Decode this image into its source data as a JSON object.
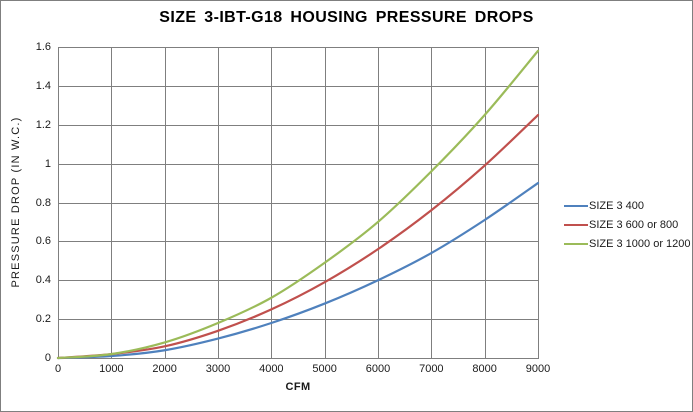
{
  "figure": {
    "title": "SIZE 3-IBT-G18 HOUSING PRESSURE DROPS"
  },
  "chart_data": {
    "type": "line",
    "title": "SIZE 3-IBT-G18 HOUSING PRESSURE DROPS",
    "xlabel": "CFM",
    "ylabel": "PRESSURE DROP (IN W.C.)",
    "xlim": [
      0,
      9000
    ],
    "ylim": [
      0,
      1.6
    ],
    "x_tick_labels": [
      "0",
      "1000",
      "2000",
      "3000",
      "4000",
      "5000",
      "6000",
      "7000",
      "8000",
      "9000"
    ],
    "y_tick_labels": [
      "0",
      "0.2",
      "0.4",
      "0.6",
      "0.8",
      "1",
      "1.2",
      "1.4",
      "1.6"
    ],
    "grid": "on",
    "gridline_color": "#7f7f7f",
    "legend_position": "right",
    "x": [
      0,
      1000,
      2000,
      3000,
      4000,
      5000,
      6000,
      7000,
      8000,
      9000
    ],
    "series": [
      {
        "name": "SIZE 3 400",
        "color": "#4F81BD",
        "values": [
          0,
          0.01,
          0.04,
          0.1,
          0.18,
          0.28,
          0.4,
          0.54,
          0.71,
          0.9
        ]
      },
      {
        "name": "SIZE 3 600 or 800",
        "color": "#C0504D",
        "values": [
          0,
          0.02,
          0.06,
          0.14,
          0.25,
          0.39,
          0.56,
          0.76,
          0.99,
          1.25
        ]
      },
      {
        "name": "SIZE 3 1000 or 1200",
        "color": "#9BBB59",
        "values": [
          0,
          0.02,
          0.08,
          0.18,
          0.31,
          0.49,
          0.7,
          0.96,
          1.25,
          1.58
        ]
      }
    ]
  }
}
